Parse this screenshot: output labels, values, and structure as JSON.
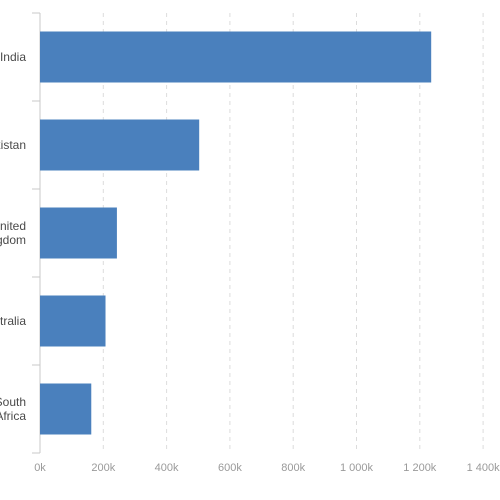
{
  "chart_data": {
    "type": "bar",
    "orientation": "horizontal",
    "title": "",
    "xlabel": "",
    "ylabel": "",
    "categories": [
      [
        "India"
      ],
      [
        "Pakistan"
      ],
      [
        "United",
        "Kingdom"
      ],
      [
        "Australia"
      ],
      [
        "South",
        "Africa"
      ]
    ],
    "category_names": [
      "India",
      "Pakistan",
      "United Kingdom",
      "Australia",
      "South Africa"
    ],
    "values": [
      1236000,
      503000,
      243000,
      207000,
      162000
    ],
    "xlim": [
      0,
      1400000
    ],
    "x_ticks": [
      0,
      200000,
      400000,
      600000,
      800000,
      1000000,
      1200000,
      1400000
    ],
    "x_tick_labels": [
      "0k",
      "200k",
      "400k",
      "600k",
      "800k",
      "1 000k",
      "1 200k",
      "1 400k"
    ],
    "grid": true,
    "legend": "none",
    "colors": {
      "bar": "#4a80bd",
      "grid": "#dcdcdc",
      "axis": "#c8c8c8",
      "category_text": "#4a4a4a",
      "tick_text": "#9a9a9a"
    }
  }
}
